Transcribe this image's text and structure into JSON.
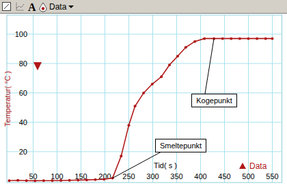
{
  "chart_data": {
    "type": "line",
    "toolbar": {
      "font_button": "A",
      "menu": "Data"
    },
    "x_label": "Tid( s )",
    "y_label": "Temperatur( °C )",
    "x": [
      0,
      18,
      36,
      54,
      72,
      90,
      108,
      126,
      144,
      162,
      180,
      198,
      216,
      234,
      250,
      263,
      281,
      299,
      318,
      335,
      352,
      369,
      388,
      408,
      428,
      446,
      464,
      482,
      500,
      518,
      536,
      550
    ],
    "series": [
      {
        "name": "Data",
        "color": "#b01818",
        "marker": "circle",
        "line_style": "solid",
        "values": [
          0.3,
          0.5,
          0.3,
          0.2,
          0.3,
          0.3,
          0.4,
          0.5,
          0.6,
          0.8,
          1.0,
          1.2,
          2,
          17,
          38,
          51,
          60,
          66,
          71,
          79,
          85,
          91,
          95,
          97,
          97,
          97,
          97,
          97,
          97,
          97,
          97,
          97
        ]
      }
    ],
    "xlim": [
      -5,
      570
    ],
    "ylim": [
      -1,
      113
    ],
    "xticks": [
      50,
      100,
      150,
      200,
      250,
      300,
      350,
      400,
      450,
      500,
      550
    ],
    "yticks": [
      20,
      40,
      60,
      80,
      100
    ],
    "grid": true,
    "legend": "lower-right",
    "annotations": [
      {
        "text": "Kogepunkt",
        "x": 428,
        "y": 97
      },
      {
        "text": "Smeltepunkt",
        "x": 216,
        "y": 2
      }
    ]
  }
}
